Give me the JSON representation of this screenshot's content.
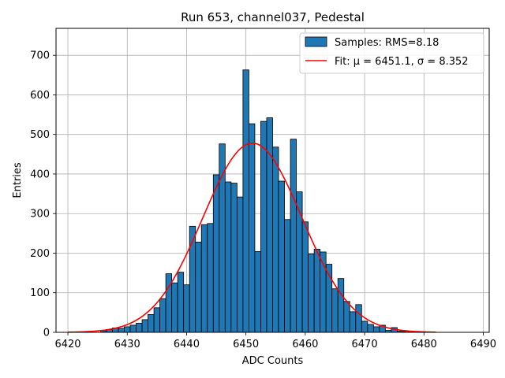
{
  "chart_data": {
    "type": "bar",
    "title": "Run 653, channel037, Pedestal",
    "xlabel": "ADC Counts",
    "ylabel": "Entries",
    "xlim": [
      6418,
      6491
    ],
    "ylim": [
      0,
      768
    ],
    "xticks": [
      6420,
      6430,
      6440,
      6450,
      6460,
      6470,
      6480,
      6490
    ],
    "yticks": [
      0,
      100,
      200,
      300,
      400,
      500,
      600,
      700
    ],
    "grid": true,
    "legend_position": "top-right",
    "bin_width": 1,
    "histogram": {
      "name": "Samples: RMS=8.18",
      "color": "#1f77b4",
      "bins": [
        [
          6426,
          4
        ],
        [
          6427,
          7
        ],
        [
          6428,
          11
        ],
        [
          6429,
          10
        ],
        [
          6430,
          14
        ],
        [
          6431,
          18
        ],
        [
          6432,
          23
        ],
        [
          6433,
          32
        ],
        [
          6434,
          45
        ],
        [
          6435,
          62
        ],
        [
          6436,
          85
        ],
        [
          6437,
          148
        ],
        [
          6438,
          125
        ],
        [
          6439,
          152
        ],
        [
          6440,
          120
        ],
        [
          6441,
          268
        ],
        [
          6442,
          228
        ],
        [
          6443,
          272
        ],
        [
          6444,
          275
        ],
        [
          6445,
          398
        ],
        [
          6446,
          476
        ],
        [
          6447,
          380
        ],
        [
          6448,
          377
        ],
        [
          6449,
          342
        ],
        [
          6450,
          663
        ],
        [
          6451,
          527
        ],
        [
          6452,
          204
        ],
        [
          6453,
          533
        ],
        [
          6454,
          542
        ],
        [
          6455,
          468
        ],
        [
          6456,
          382
        ],
        [
          6457,
          285
        ],
        [
          6458,
          488
        ],
        [
          6459,
          355
        ],
        [
          6460,
          279
        ],
        [
          6461,
          198
        ],
        [
          6462,
          210
        ],
        [
          6463,
          203
        ],
        [
          6464,
          172
        ],
        [
          6465,
          110
        ],
        [
          6466,
          136
        ],
        [
          6467,
          78
        ],
        [
          6468,
          52
        ],
        [
          6469,
          70
        ],
        [
          6470,
          28
        ],
        [
          6471,
          20
        ],
        [
          6472,
          14
        ],
        [
          6473,
          18
        ],
        [
          6474,
          5
        ],
        [
          6475,
          12
        ],
        [
          6476,
          3
        ],
        [
          6477,
          2
        ]
      ]
    },
    "fit": {
      "name": "Fit: μ = 6451.1, σ = 8.352",
      "color": "#ff0000",
      "type": "gaussian",
      "mu": 6451.1,
      "sigma": 8.352,
      "amplitude": 478,
      "x_range": [
        6420,
        6482
      ]
    }
  }
}
